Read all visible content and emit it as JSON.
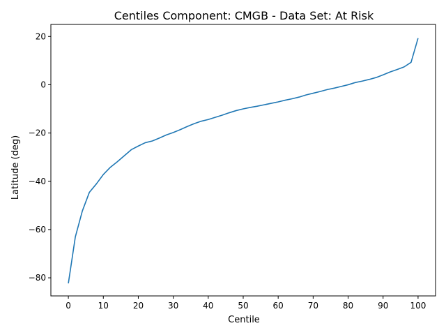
{
  "chart_data": {
    "type": "line",
    "title": "Centiles Component: CMGB - Data Set: At Risk",
    "xlabel": "Centile",
    "ylabel": "Latitude (deg)",
    "xlim": [
      -5,
      105
    ],
    "ylim": [
      -87.5,
      25
    ],
    "xticks": [
      0,
      10,
      20,
      30,
      40,
      50,
      60,
      70,
      80,
      90,
      100
    ],
    "yticks": [
      -80,
      -60,
      -40,
      -20,
      0,
      20
    ],
    "grid": false,
    "color": "#1f77b4",
    "series": [
      {
        "x": [
          0,
          2,
          4,
          6,
          8,
          10,
          12,
          14,
          16,
          18,
          20,
          22,
          24,
          26,
          28,
          30,
          32,
          34,
          36,
          38,
          40,
          42,
          44,
          46,
          48,
          50,
          52,
          54,
          56,
          58,
          60,
          62,
          64,
          66,
          68,
          70,
          72,
          74,
          76,
          78,
          80,
          82,
          84,
          86,
          88,
          90,
          92,
          94,
          96,
          98,
          100
        ],
        "y": [
          -82.3,
          -63.0,
          -52.3,
          -44.6,
          -41.1,
          -37.2,
          -34.2,
          -31.9,
          -29.4,
          -26.9,
          -25.4,
          -24.0,
          -23.3,
          -22.1,
          -20.8,
          -19.8,
          -18.6,
          -17.3,
          -16.1,
          -15.1,
          -14.4,
          -13.5,
          -12.6,
          -11.6,
          -10.7,
          -10.0,
          -9.4,
          -8.9,
          -8.3,
          -7.7,
          -7.1,
          -6.4,
          -5.8,
          -5.1,
          -4.2,
          -3.5,
          -2.8,
          -2.0,
          -1.4,
          -0.7,
          0.0,
          0.9,
          1.5,
          2.2,
          3.0,
          4.1,
          5.3,
          6.3,
          7.4,
          9.3,
          19.3
        ]
      }
    ]
  }
}
